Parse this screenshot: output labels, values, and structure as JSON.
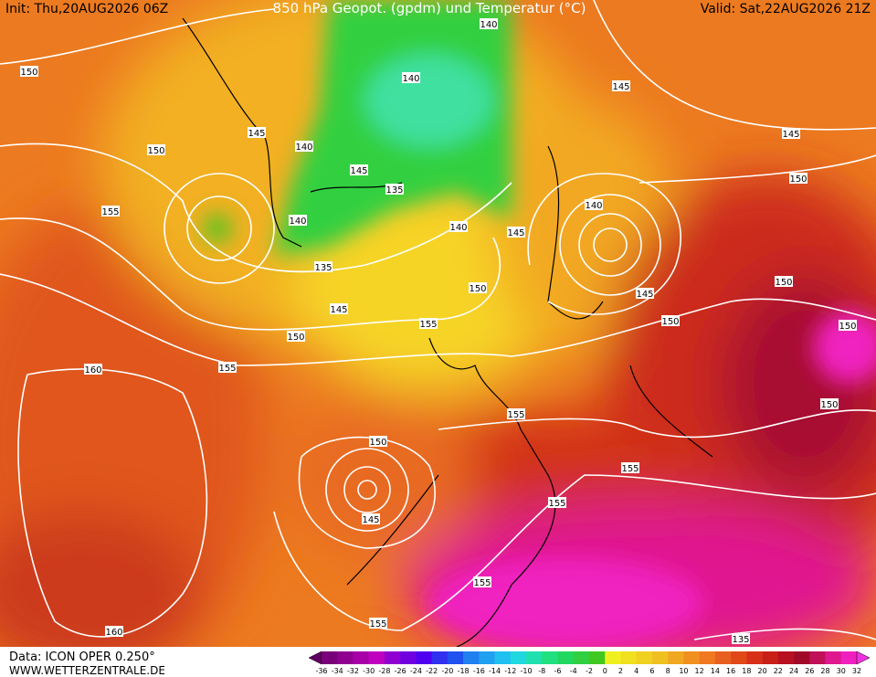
{
  "header": {
    "init": "Init: Thu,20AUG2026 06Z",
    "title": "850 hPa Geopot. (gpdm) und Temperatur (°C)",
    "valid": "Valid: Sat,22AUG2026 21Z"
  },
  "footer": {
    "data": "Data: ICON OPER 0.250°",
    "site": "WWW.WETTERZENTRALE.DE"
  },
  "colorbar": {
    "labels": [
      -36,
      -34,
      -32,
      -30,
      -28,
      -26,
      -24,
      -22,
      -20,
      -18,
      -16,
      -14,
      -12,
      -10,
      -8,
      -6,
      -4,
      -2,
      0,
      2,
      4,
      6,
      8,
      10,
      12,
      14,
      16,
      18,
      20,
      22,
      24,
      26,
      28,
      30,
      32
    ],
    "colors": [
      "#600060",
      "#780078",
      "#900090",
      "#a800a8",
      "#c000c0",
      "#9000d0",
      "#7000e0",
      "#5000f0",
      "#3030f0",
      "#2050f0",
      "#2080f0",
      "#20a0f0",
      "#20c0f0",
      "#20d8e0",
      "#20e0b0",
      "#20e080",
      "#20d860",
      "#30d040",
      "#40c820",
      "#f0f020",
      "#f0e020",
      "#f0d020",
      "#f0c020",
      "#f0a820",
      "#f09020",
      "#f07820",
      "#e86020",
      "#e04818",
      "#d83018",
      "#c82018",
      "#b81020",
      "#a00828",
      "#c01058",
      "#e01890",
      "#f020c0",
      "#f030e0"
    ]
  },
  "contour_labels": [
    150,
    150,
    155,
    145,
    140,
    145,
    135,
    140,
    135,
    140,
    145,
    140,
    140,
    145,
    145,
    150,
    140,
    145,
    150,
    150,
    150,
    150,
    150,
    145,
    155,
    150,
    155,
    160,
    150,
    145,
    155,
    155,
    155,
    155,
    155,
    160,
    135
  ]
}
